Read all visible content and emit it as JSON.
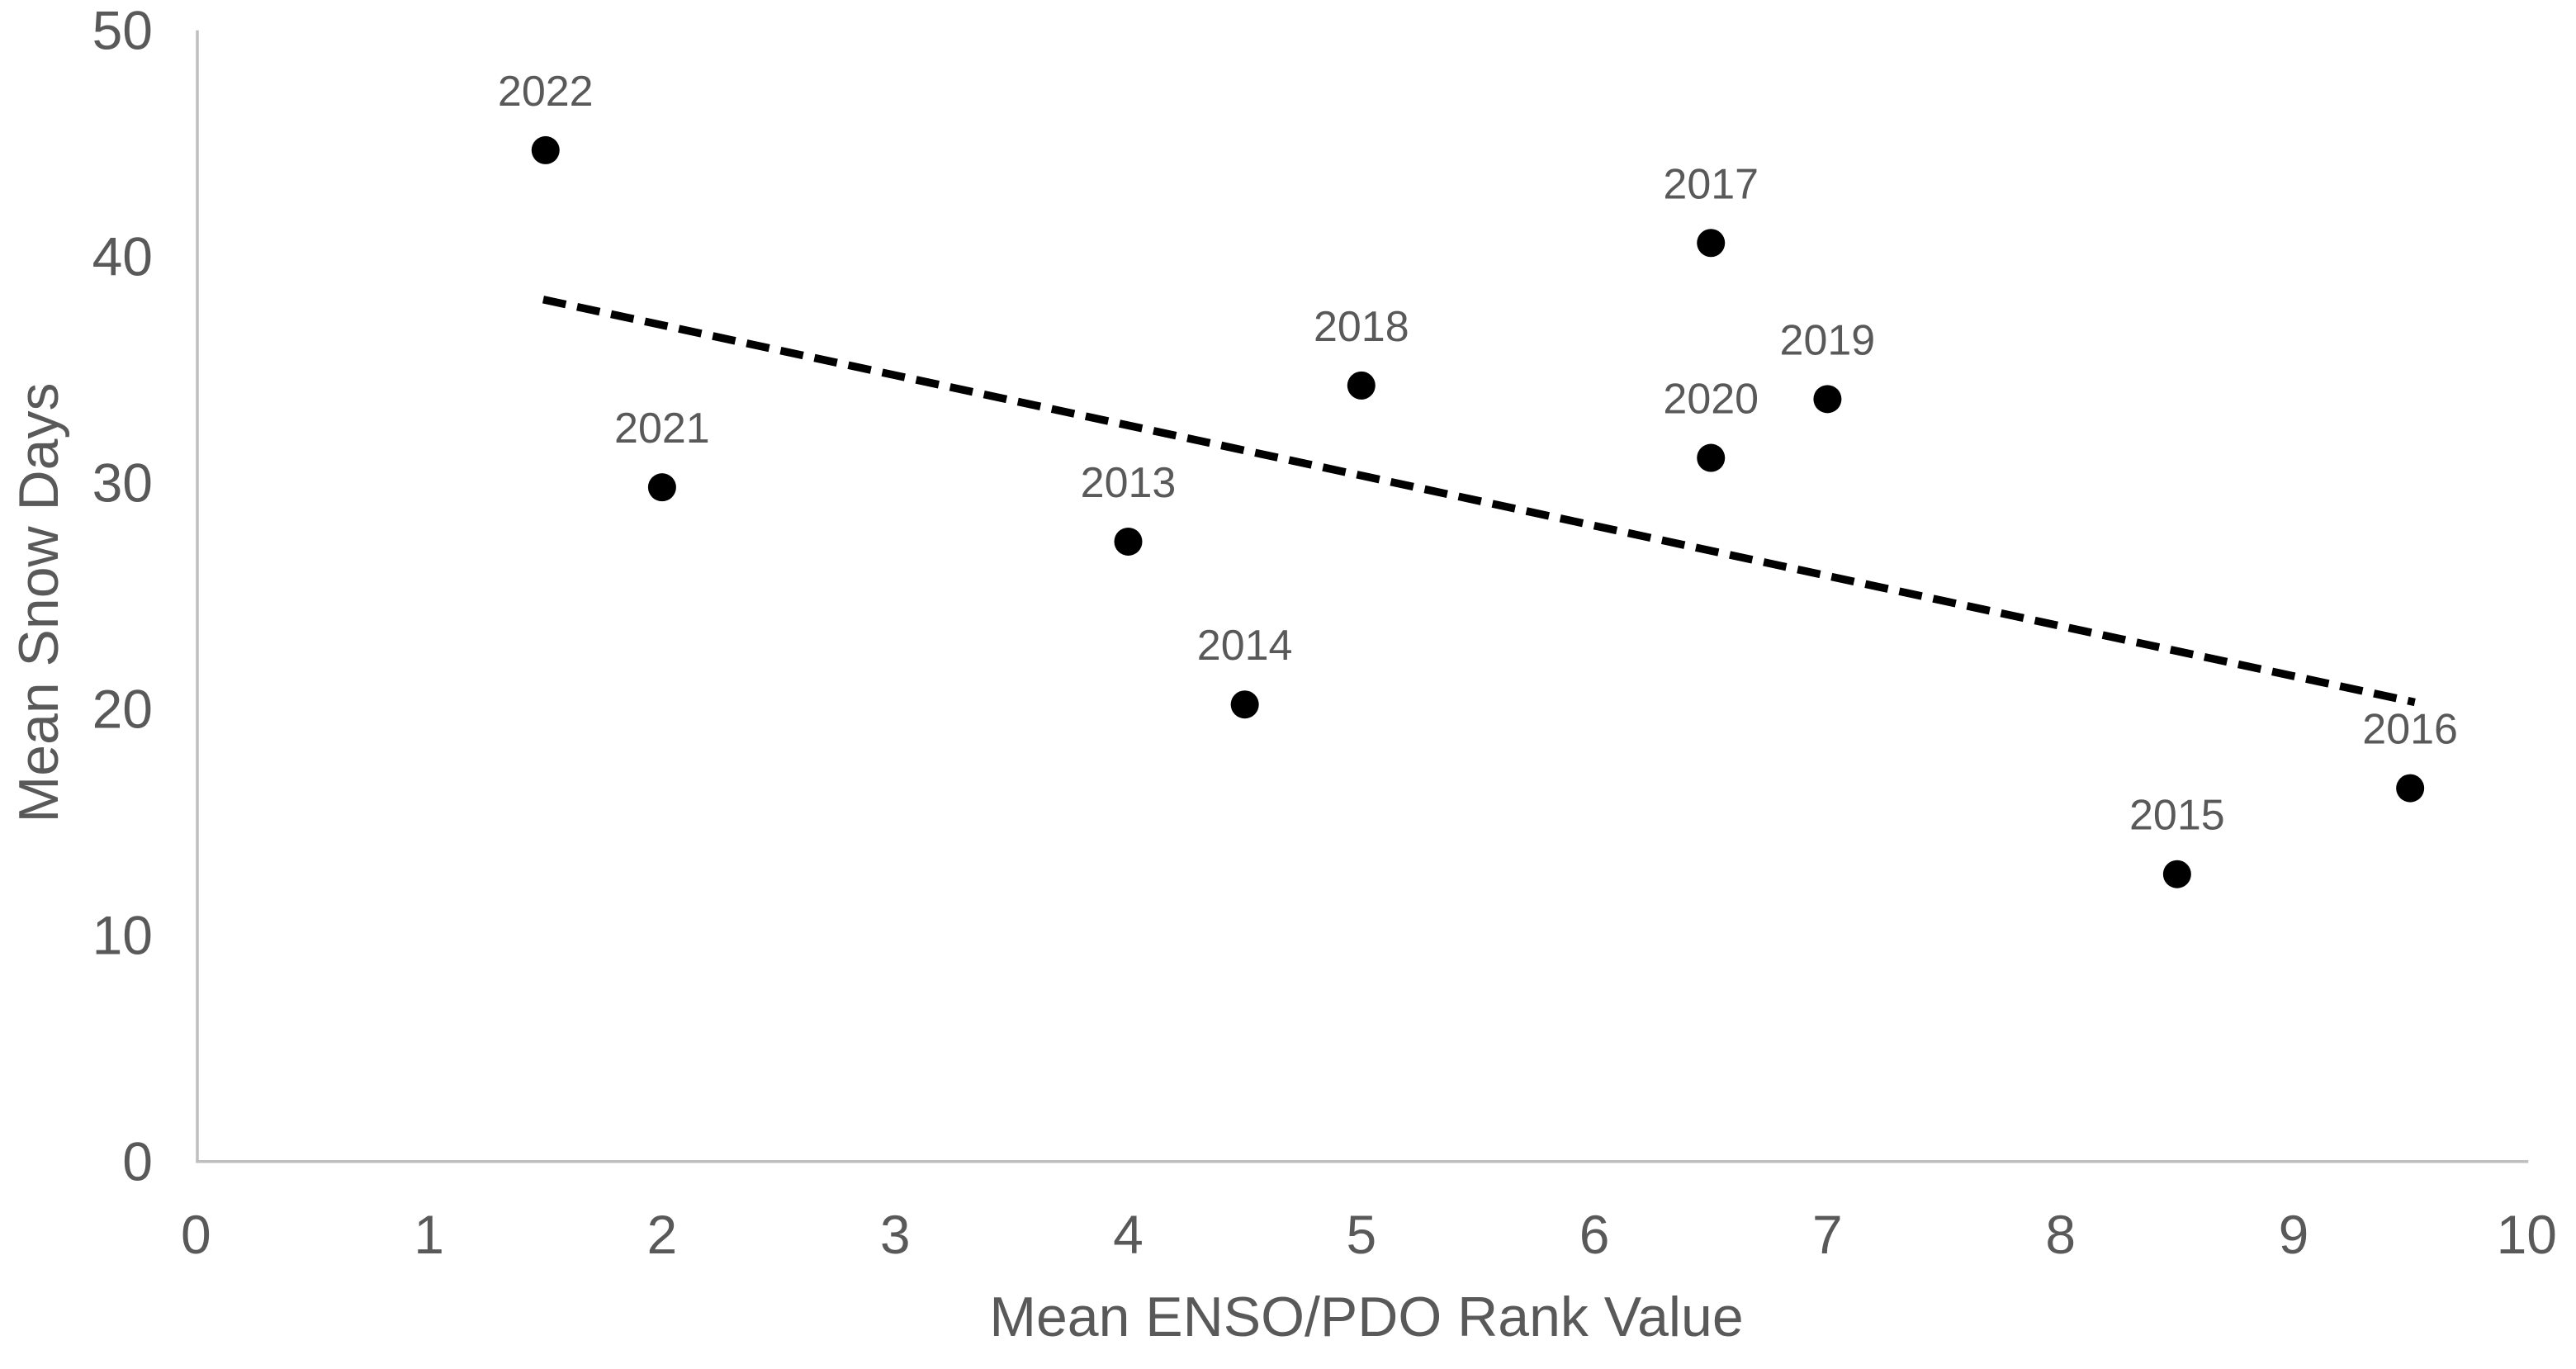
{
  "chart_data": {
    "type": "scatter",
    "title": "",
    "xlabel": "Mean ENSO/PDO Rank Value",
    "ylabel": "Mean Snow Days",
    "xlim": [
      0,
      10
    ],
    "ylim": [
      0,
      50
    ],
    "x_ticks": [
      0,
      1,
      2,
      3,
      4,
      5,
      6,
      7,
      8,
      9,
      10
    ],
    "y_ticks": [
      0,
      10,
      20,
      30,
      40,
      50
    ],
    "grid": false,
    "legend": "none",
    "points": [
      {
        "label": "2013",
        "x": 4.0,
        "y": 27.4
      },
      {
        "label": "2014",
        "x": 4.5,
        "y": 20.2
      },
      {
        "label": "2015",
        "x": 8.5,
        "y": 12.7
      },
      {
        "label": "2016",
        "x": 9.5,
        "y": 16.5
      },
      {
        "label": "2017",
        "x": 6.5,
        "y": 40.6
      },
      {
        "label": "2018",
        "x": 5.0,
        "y": 34.3
      },
      {
        "label": "2019",
        "x": 7.0,
        "y": 33.7
      },
      {
        "label": "2020",
        "x": 6.5,
        "y": 31.1
      },
      {
        "label": "2021",
        "x": 2.0,
        "y": 29.8
      },
      {
        "label": "2022",
        "x": 1.5,
        "y": 44.7
      }
    ],
    "trendline": {
      "style": "dashed",
      "x1": 1.49,
      "y1": 38.1,
      "x2": 9.52,
      "y2": 20.3
    },
    "colors": {
      "point": "#000000",
      "trend": "#000000",
      "text": "#595959",
      "axis": "#BFBFBF",
      "background": "#FFFFFF"
    }
  }
}
